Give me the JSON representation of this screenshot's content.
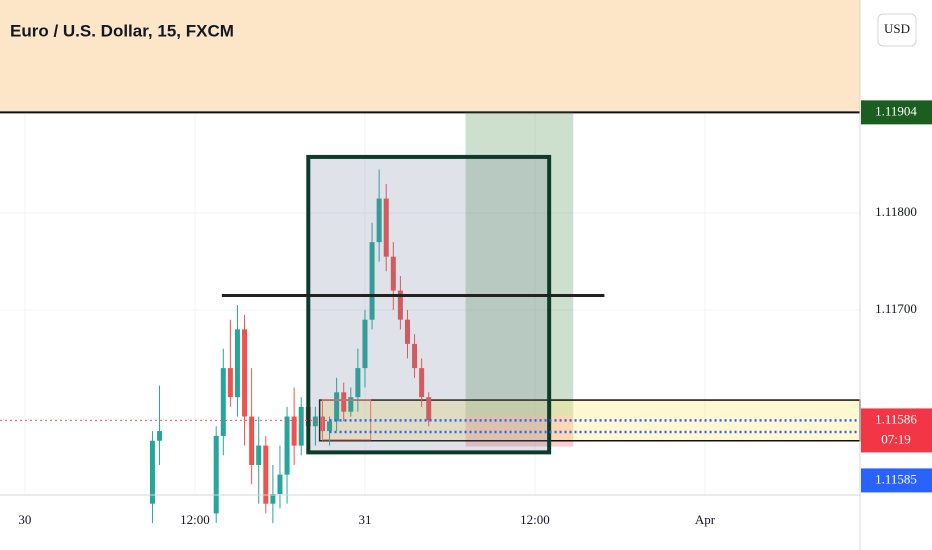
{
  "chart_data": {
    "type": "candlestick",
    "title": "Euro / U.S. Dollar, 15, FXCM",
    "currency": "USD",
    "xlim": [
      -1.76,
      58.94
    ],
    "ylim": [
      1.11509,
      1.1202
    ],
    "xticks": [
      {
        "value": 0,
        "label": "30"
      },
      {
        "value": 12,
        "label": "12:00"
      },
      {
        "value": 24,
        "label": "31"
      },
      {
        "value": 36,
        "label": "12:00"
      },
      {
        "value": 48,
        "label": "Apr"
      }
    ],
    "yticks": [
      {
        "value": 1.117,
        "label": "1.11700"
      },
      {
        "value": 1.118,
        "label": "1.11800"
      }
    ],
    "grid": true,
    "up_color": "#26a69a",
    "down_color": "#ef5350",
    "x": [
      9.0,
      9.5,
      13.5,
      14.0,
      14.5,
      15.0,
      15.5,
      16.0,
      16.5,
      17.0,
      17.5,
      18.0,
      18.5,
      19.0,
      19.5,
      20.0,
      20.5,
      21.0,
      21.5,
      22.0,
      22.5,
      23.0,
      23.5,
      24.0,
      24.5,
      25.0,
      25.5,
      26.0,
      26.5,
      27.0,
      27.5,
      28.0,
      28.5
    ],
    "open": [
      1.115,
      1.11565,
      1.1149,
      1.1157,
      1.1164,
      1.1161,
      1.1168,
      1.1159,
      1.1154,
      1.1156,
      1.115,
      1.1151,
      1.1153,
      1.1159,
      1.1156,
      1.116,
      1.1158,
      1.1159,
      1.11575,
      1.11585,
      1.11615,
      1.11595,
      1.1161,
      1.1164,
      1.1169,
      1.1177,
      1.11815,
      1.11755,
      1.1172,
      1.1169,
      1.11665,
      1.1164,
      1.1161
    ],
    "high": [
      1.11575,
      1.11622,
      1.1158,
      1.1166,
      1.1169,
      1.11705,
      1.11695,
      1.1164,
      1.1159,
      1.1157,
      1.1154,
      1.1156,
      1.116,
      1.1162,
      1.1161,
      1.1161,
      1.116,
      1.11605,
      1.1159,
      1.1163,
      1.11625,
      1.1162,
      1.1166,
      1.117,
      1.1179,
      1.11845,
      1.1183,
      1.1177,
      1.11735,
      1.117,
      1.11675,
      1.1165,
      1.11615
    ],
    "low": [
      1.1148,
      1.1154,
      1.1148,
      1.1155,
      1.116,
      1.1159,
      1.1156,
      1.1152,
      1.115,
      1.1149,
      1.1148,
      1.11495,
      1.115,
      1.1154,
      1.1155,
      1.1157,
      1.1156,
      1.11565,
      1.1156,
      1.11575,
      1.11585,
      1.1159,
      1.11595,
      1.1162,
      1.1168,
      1.1175,
      1.1174,
      1.117,
      1.1168,
      1.1165,
      1.1163,
      1.116,
      1.1158
    ],
    "close": [
      1.11565,
      1.11575,
      1.1157,
      1.1164,
      1.1161,
      1.1168,
      1.1159,
      1.1154,
      1.1156,
      1.115,
      1.1151,
      1.1153,
      1.1159,
      1.1156,
      1.116,
      1.1158,
      1.1159,
      1.11575,
      1.11585,
      1.11615,
      1.11595,
      1.1161,
      1.1164,
      1.1169,
      1.1177,
      1.11815,
      1.11755,
      1.1172,
      1.1169,
      1.11665,
      1.1164,
      1.1161,
      1.11586
    ],
    "drawings_below": [
      {
        "kind": "rect",
        "x": [
          -1.76,
          58.94
        ],
        "y": [
          1.11904,
          1.1202
        ],
        "fill": "#fde5c8"
      },
      {
        "kind": "line",
        "x": [
          -1.76,
          58.94
        ],
        "y": [
          1.11904,
          1.11904
        ],
        "stroke": "#111111",
        "width": 2
      },
      {
        "kind": "rect",
        "x": [
          31.1,
          38.7
        ],
        "y": [
          1.11591,
          1.11904
        ],
        "fill": "rgba(76,140,76,0.28)"
      },
      {
        "kind": "rect",
        "x": [
          31.1,
          38.7
        ],
        "y": [
          1.11559,
          1.11591
        ],
        "fill": "rgba(242,54,69,0.25)"
      },
      {
        "kind": "rect",
        "x": [
          20.8,
          58.94
        ],
        "y": [
          1.11565,
          1.11607
        ],
        "fill": "rgba(255,235,120,0.35)",
        "stroke": "#111111",
        "width": 1.5
      }
    ],
    "drawings_above": [
      {
        "kind": "rect",
        "x": [
          20.0,
          37.0
        ],
        "y": [
          1.11553,
          1.11858
        ],
        "fill": "rgba(110,125,150,0.22)",
        "stroke": "#0d3b2a",
        "width": 4
      },
      {
        "kind": "line",
        "x": [
          13.9,
          40.9
        ],
        "y": [
          1.11715,
          1.11715
        ],
        "stroke": "#222222",
        "width": 3
      },
      {
        "kind": "rect",
        "x": [
          21.0,
          24.4
        ],
        "y": [
          1.11566,
          1.11607
        ],
        "stroke": "#e57373",
        "width": 1
      },
      {
        "kind": "line",
        "x": [
          21.5,
          58.94
        ],
        "y": [
          1.11586,
          1.11586
        ],
        "stroke": "#2962ff",
        "width": 2.5,
        "dash": true
      },
      {
        "kind": "line",
        "x": [
          21.5,
          58.94
        ],
        "y": [
          1.11574,
          1.11574
        ],
        "stroke": "#2962ff",
        "width": 2.5,
        "dash": true
      },
      {
        "kind": "line",
        "x": [
          -1.76,
          21.5
        ],
        "y": [
          1.11586,
          1.11586
        ],
        "stroke": "#ef5350",
        "width": 1,
        "dash": true
      }
    ],
    "price_labels": [
      {
        "value": 1.11904,
        "label": "1.11904",
        "color": "#1b5e20"
      },
      {
        "value": 1.11586,
        "label": "1.11586",
        "countdown": "07:19",
        "color": "#f23645"
      },
      {
        "value": 1.11585,
        "label": "1.11585",
        "color": "#2962ff"
      }
    ]
  }
}
